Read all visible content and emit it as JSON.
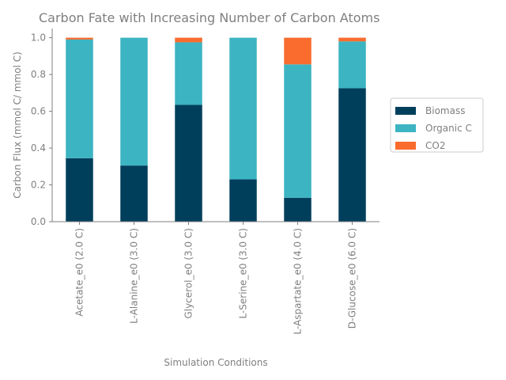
{
  "chart_data": {
    "type": "bar",
    "stacked": true,
    "title": "Carbon Fate with Increasing Number of Carbon Atoms",
    "xlabel": "Simulation Conditions",
    "ylabel": "Carbon Flux (mmol C/ mmol C)",
    "ylim": [
      0,
      1.05
    ],
    "yticks": [
      "0.0",
      "0.2",
      "0.4",
      "0.6",
      "0.8",
      "1.0"
    ],
    "categories": [
      "Acetate_e0 (2.0 C)",
      "L-Alanine_e0 (3.0 C)",
      "Glycerol_e0 (3.0 C)",
      "L-Serine_e0 (3.0 C)",
      "L-Aspartate_e0 (4.0 C)",
      "D-Glucose_e0 (6.0 C)"
    ],
    "series": [
      {
        "name": "Biomass",
        "color": "#003f5c",
        "values": [
          0.345,
          0.305,
          0.635,
          0.23,
          0.13,
          0.725
        ]
      },
      {
        "name": "Organic C",
        "color": "#3cb4c2",
        "values": [
          0.645,
          0.695,
          0.34,
          0.77,
          0.725,
          0.255
        ]
      },
      {
        "name": "CO2",
        "color": "#f96c2d",
        "values": [
          0.01,
          0.0,
          0.025,
          0.0,
          0.145,
          0.02
        ]
      }
    ],
    "grid": false,
    "legend_position": "right"
  }
}
